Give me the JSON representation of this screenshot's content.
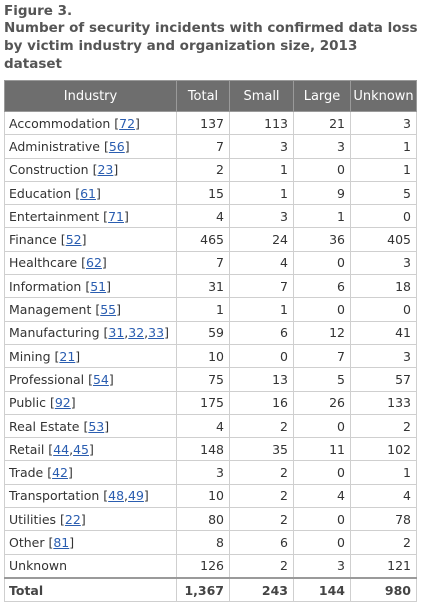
{
  "figure": {
    "label": "Figure 3.",
    "title": "Number of security incidents with confirmed data loss by victim industry and organization size, 2013 dataset"
  },
  "table": {
    "headers": [
      "Industry",
      "Total",
      "Small",
      "Large",
      "Unknown"
    ],
    "rows": [
      {
        "industry": "Accommodation",
        "codes": [
          "72"
        ],
        "total": "137",
        "small": "113",
        "large": "21",
        "unknown": "3"
      },
      {
        "industry": "Administrative",
        "codes": [
          "56"
        ],
        "total": "7",
        "small": "3",
        "large": "3",
        "unknown": "1"
      },
      {
        "industry": "Construction",
        "codes": [
          "23"
        ],
        "total": "2",
        "small": "1",
        "large": "0",
        "unknown": "1"
      },
      {
        "industry": "Education",
        "codes": [
          "61"
        ],
        "total": "15",
        "small": "1",
        "large": "9",
        "unknown": "5"
      },
      {
        "industry": "Entertainment",
        "codes": [
          "71"
        ],
        "total": "4",
        "small": "3",
        "large": "1",
        "unknown": "0"
      },
      {
        "industry": "Finance",
        "codes": [
          "52"
        ],
        "total": "465",
        "small": "24",
        "large": "36",
        "unknown": "405"
      },
      {
        "industry": "Healthcare",
        "codes": [
          "62"
        ],
        "total": "7",
        "small": "4",
        "large": "0",
        "unknown": "3"
      },
      {
        "industry": "Information",
        "codes": [
          "51"
        ],
        "total": "31",
        "small": "7",
        "large": "6",
        "unknown": "18"
      },
      {
        "industry": "Management",
        "codes": [
          "55"
        ],
        "total": "1",
        "small": "1",
        "large": "0",
        "unknown": "0"
      },
      {
        "industry": "Manufacturing",
        "codes": [
          "31",
          "32",
          "33"
        ],
        "total": "59",
        "small": "6",
        "large": "12",
        "unknown": "41"
      },
      {
        "industry": "Mining",
        "codes": [
          "21"
        ],
        "total": "10",
        "small": "0",
        "large": "7",
        "unknown": "3"
      },
      {
        "industry": "Professional",
        "codes": [
          "54"
        ],
        "total": "75",
        "small": "13",
        "large": "5",
        "unknown": "57"
      },
      {
        "industry": "Public",
        "codes": [
          "92"
        ],
        "total": "175",
        "small": "16",
        "large": "26",
        "unknown": "133"
      },
      {
        "industry": "Real Estate",
        "codes": [
          "53"
        ],
        "total": "4",
        "small": "2",
        "large": "0",
        "unknown": "2"
      },
      {
        "industry": "Retail",
        "codes": [
          "44",
          "45"
        ],
        "total": "148",
        "small": "35",
        "large": "11",
        "unknown": "102"
      },
      {
        "industry": "Trade",
        "codes": [
          "42"
        ],
        "total": "3",
        "small": "2",
        "large": "0",
        "unknown": "1"
      },
      {
        "industry": "Transportation",
        "codes": [
          "48",
          "49"
        ],
        "total": "10",
        "small": "2",
        "large": "4",
        "unknown": "4"
      },
      {
        "industry": "Utilities",
        "codes": [
          "22"
        ],
        "total": "80",
        "small": "2",
        "large": "0",
        "unknown": "78"
      },
      {
        "industry": "Other",
        "codes": [
          "81"
        ],
        "total": "8",
        "small": "6",
        "large": "0",
        "unknown": "2"
      },
      {
        "industry": "Unknown",
        "codes": [],
        "total": "126",
        "small": "2",
        "large": "3",
        "unknown": "121"
      }
    ],
    "total_row": {
      "label": "Total",
      "total": "1,367",
      "small": "243",
      "large": "144",
      "unknown": "980"
    }
  }
}
